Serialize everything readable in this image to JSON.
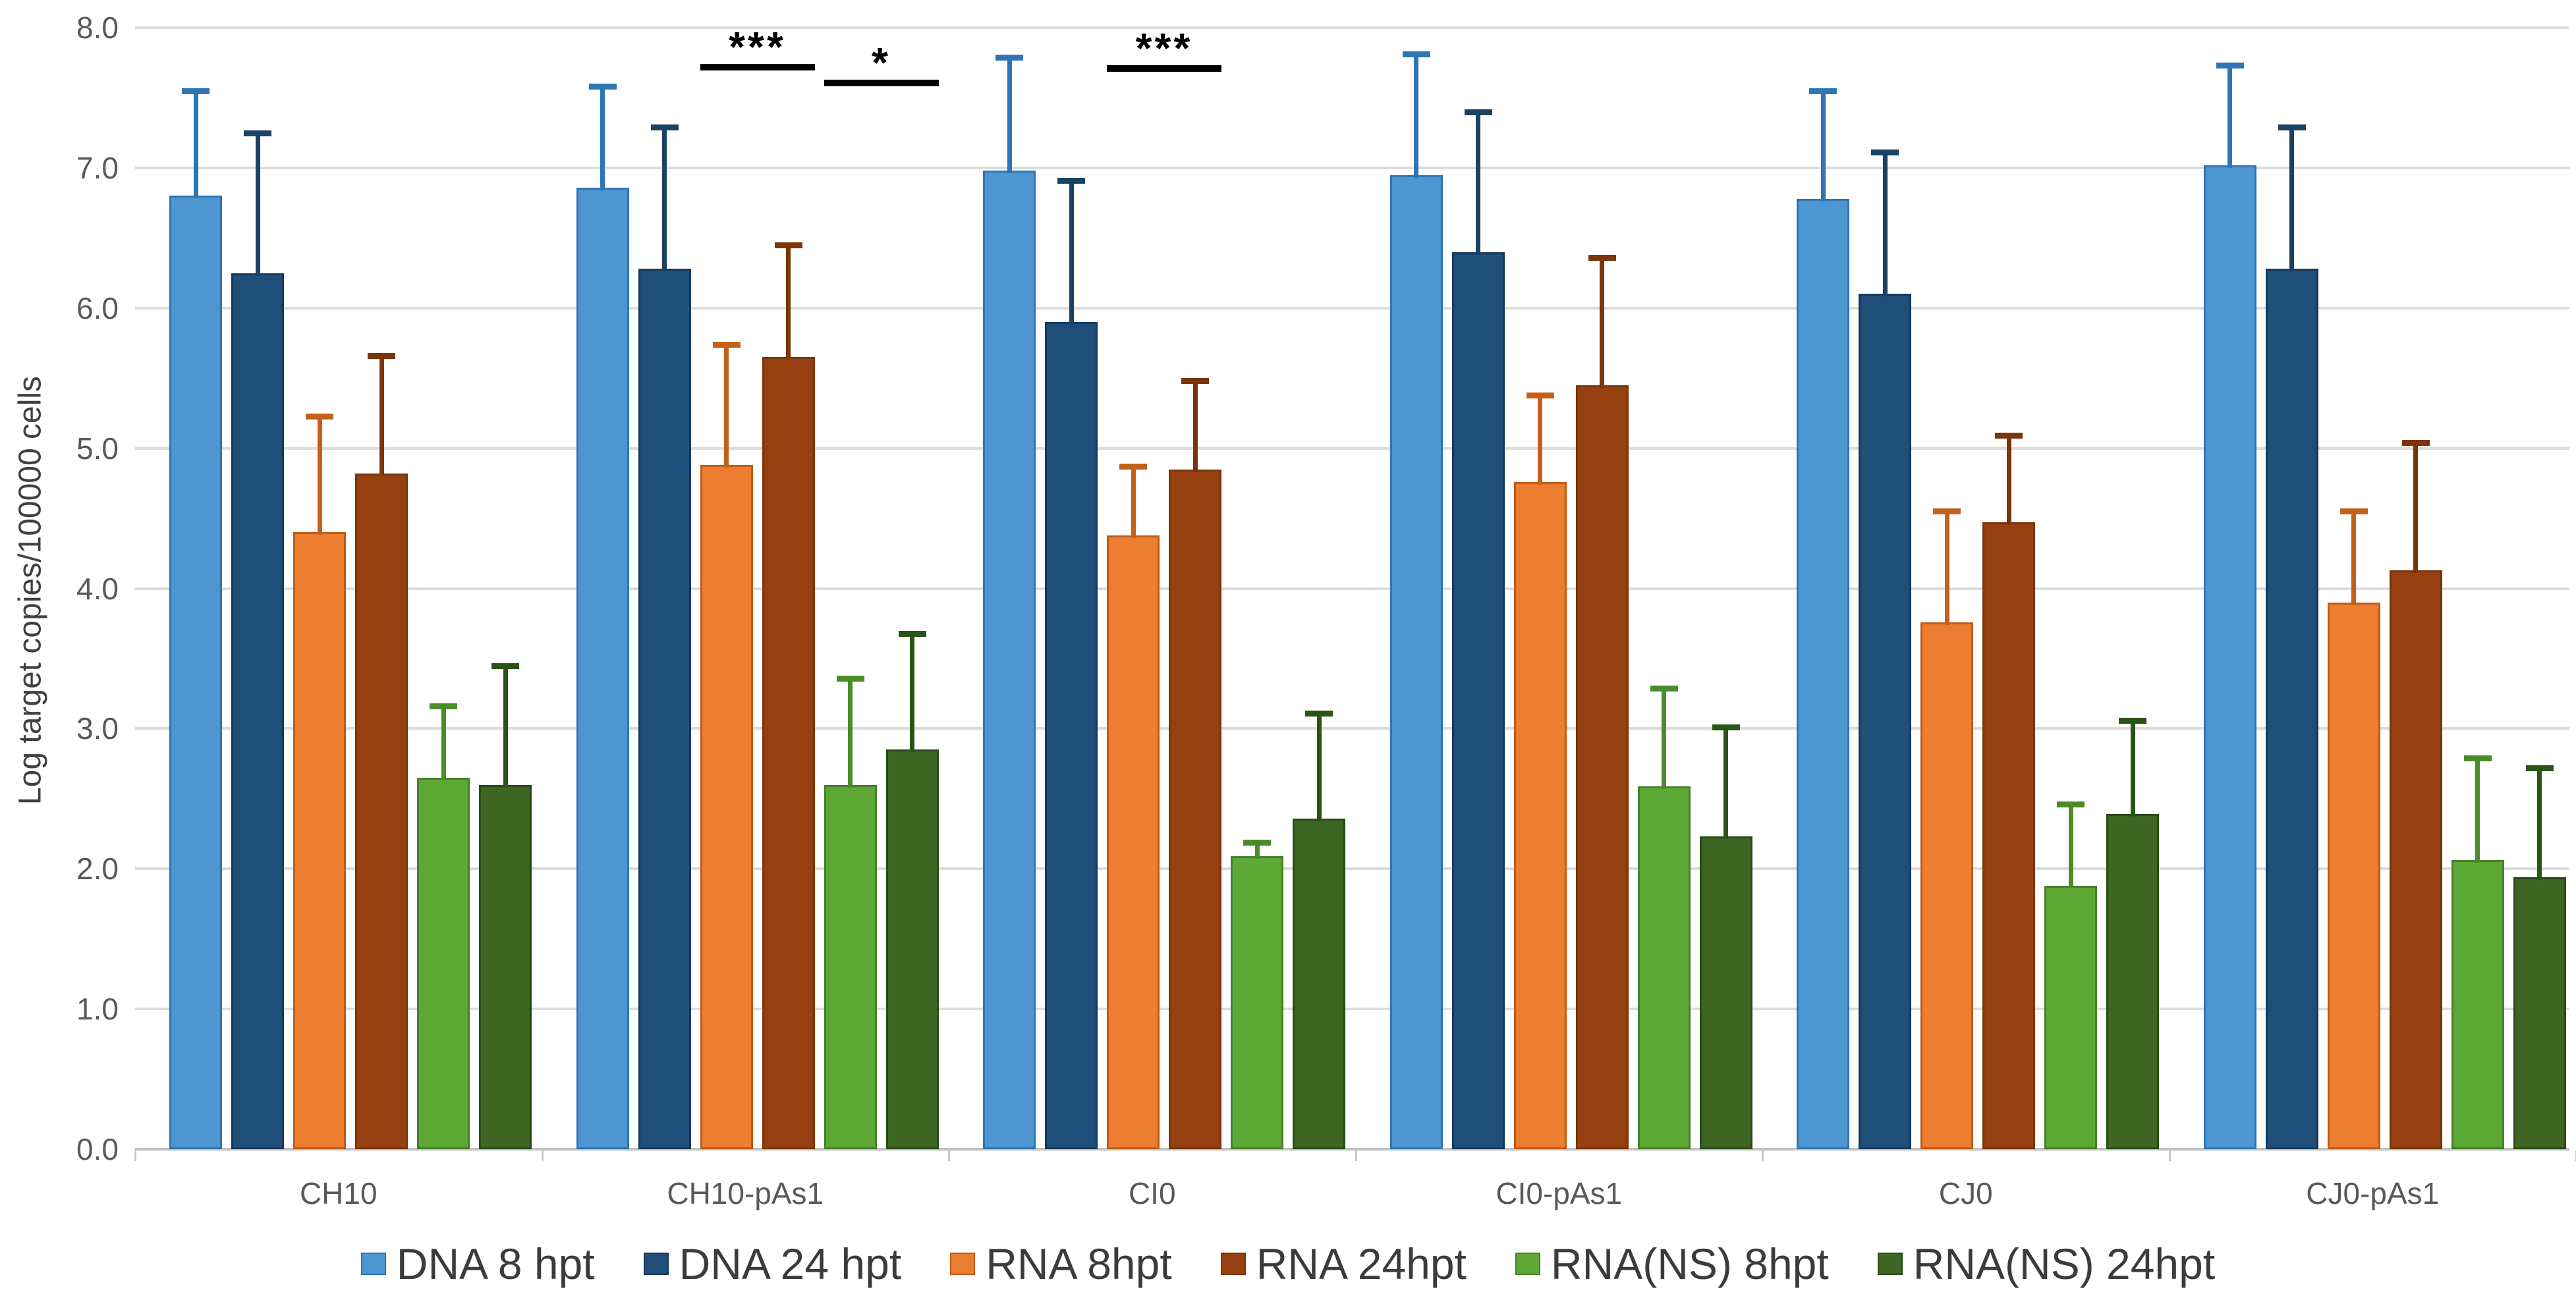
{
  "chart_data": {
    "type": "bar",
    "title": "",
    "xlabel": "",
    "ylabel": "Log target copies/100000 cells",
    "ylim": [
      0,
      8
    ],
    "ytick_step": 1,
    "yticks": [
      "8.0",
      "7.0",
      "6.0",
      "5.0",
      "4.0",
      "3.0",
      "2.0",
      "1.0",
      "0.0"
    ],
    "grid": true,
    "legend_position": "bottom",
    "categories": [
      "CH10",
      "CH10-pAs1",
      "CI0",
      "CI0-pAs1",
      "CJ0",
      "CJ0-pAs1"
    ],
    "series": [
      {
        "name": "DNA 8 hpt",
        "color": "#4e96d2",
        "border_color": "#2e75b6",
        "error_color": "#2e75b6",
        "values": [
          6.8,
          6.86,
          6.98,
          6.95,
          6.78,
          7.02
        ],
        "error_top": [
          7.55,
          7.58,
          7.79,
          7.81,
          7.55,
          7.73
        ]
      },
      {
        "name": "DNA 24 hpt",
        "color": "#1f4e79",
        "border_color": "#16395b",
        "error_color": "#1a4263",
        "values": [
          6.25,
          6.28,
          5.9,
          6.4,
          6.1,
          6.28
        ],
        "error_top": [
          7.25,
          7.29,
          6.91,
          7.4,
          7.11,
          7.29
        ]
      },
      {
        "name": "RNA 8hpt",
        "color": "#ed7d31",
        "border_color": "#c05c15",
        "error_color": "#c4601a",
        "values": [
          4.4,
          4.88,
          4.38,
          4.76,
          3.76,
          3.9
        ],
        "error_top": [
          5.23,
          5.74,
          4.87,
          5.38,
          4.55,
          4.55
        ]
      },
      {
        "name": "RNA 24hpt",
        "color": "#964011",
        "border_color": "#7a3509",
        "error_color": "#7a3509",
        "values": [
          4.82,
          5.65,
          4.85,
          5.45,
          4.47,
          4.13
        ],
        "error_top": [
          5.66,
          6.45,
          5.48,
          6.36,
          5.09,
          5.04
        ]
      },
      {
        "name": "RNA(NS) 8hpt",
        "color": "#5da835",
        "border_color": "#47802a",
        "error_color": "#4c8c28",
        "values": [
          2.65,
          2.6,
          2.09,
          2.59,
          1.88,
          2.06
        ],
        "error_top": [
          3.16,
          3.36,
          2.19,
          3.29,
          2.46,
          2.79
        ]
      },
      {
        "name": "RNA(NS) 24hpt",
        "color": "#3c6622",
        "border_color": "#2b4a18",
        "error_color": "#2a5414",
        "values": [
          2.6,
          2.85,
          2.36,
          2.23,
          2.39,
          1.94
        ],
        "error_top": [
          3.45,
          3.68,
          3.11,
          3.01,
          3.06,
          2.72
        ]
      }
    ],
    "significance": [
      {
        "label": "***",
        "category": "CH10-pAs1",
        "from_series": "RNA 8hpt",
        "to_series": "RNA 24hpt",
        "line_value": 7.74
      },
      {
        "label": "*",
        "category": "CH10-pAs1",
        "from_series": "RNA(NS) 8hpt",
        "to_series": "RNA(NS) 24hpt",
        "line_value": 7.63
      },
      {
        "label": "***",
        "category": "CI0",
        "from_series": "RNA 8hpt",
        "to_series": "RNA 24hpt",
        "line_value": 7.73
      }
    ]
  },
  "legend": {
    "items": [
      "DNA 8 hpt",
      "DNA 24 hpt",
      "RNA 8hpt",
      "RNA 24hpt",
      "RNA(NS) 8hpt",
      "RNA(NS) 24hpt"
    ]
  }
}
